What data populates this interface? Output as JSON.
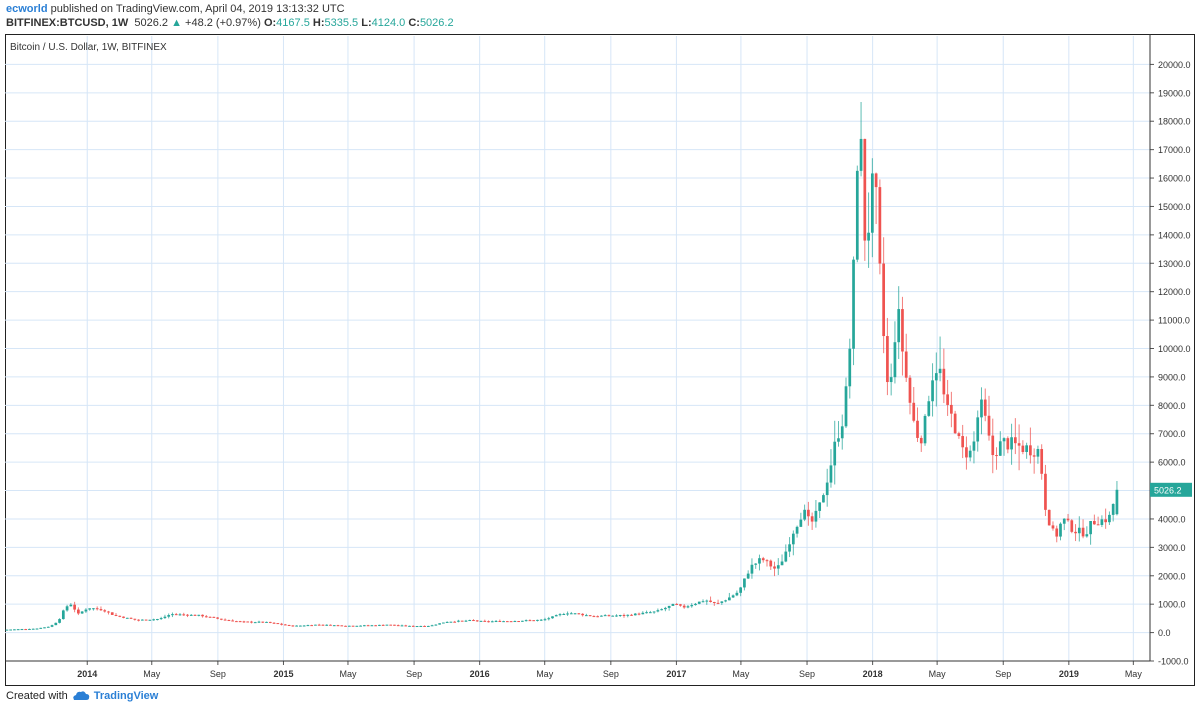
{
  "header": {
    "author": "ecworld",
    "published_text": "published on TradingView.com, April 04, 2019 13:13:32 UTC",
    "symbol": "BITFINEX:BTCUSD, 1W",
    "last": "5026.2",
    "change": "+48.2 (+0.97%)",
    "o_label": "O:",
    "o_value": "4167.5",
    "h_label": "H:",
    "h_value": "5335.5",
    "l_label": "L:",
    "l_value": "4124.0",
    "c_label": "C:",
    "c_value": "5026.2"
  },
  "footer": {
    "created_with": "Created with",
    "brand": "TradingView"
  },
  "colors": {
    "up": "#26a69a",
    "down": "#ef5350",
    "grid": "#d6e6f7",
    "price_tag": "#26a69a"
  },
  "chart_data": {
    "type": "candlestick",
    "title": "Bitcoin / U.S. Dollar, 1W, BITFINEX",
    "last_price_label": "5026.2",
    "ylim": [
      -1000,
      21000
    ],
    "y_ticks": [
      -1000,
      0,
      1000,
      2000,
      3000,
      4000,
      5000,
      6000,
      7000,
      8000,
      9000,
      10000,
      11000,
      12000,
      13000,
      14000,
      15000,
      16000,
      17000,
      18000,
      19000,
      20000
    ],
    "y_tick_labels": [
      "-1000.0",
      "0.0",
      "1000.0",
      "2000.0",
      "3000.0",
      "4000.0",
      "5000.0",
      "6000.0",
      "7000.0",
      "8000.0",
      "9000.0",
      "10000.0",
      "11000.0",
      "12000.0",
      "13000.0",
      "14000.0",
      "15000.0",
      "16000.0",
      "17000.0",
      "18000.0",
      "19000.0",
      "20000.0"
    ],
    "x_range": [
      "2013-08-01",
      "2019-06-01"
    ],
    "x_ticks": [
      {
        "date": "2014-01-01",
        "label": "2014",
        "bold": true
      },
      {
        "date": "2014-05-01",
        "label": "May",
        "bold": false
      },
      {
        "date": "2014-09-01",
        "label": "Sep",
        "bold": false
      },
      {
        "date": "2015-01-01",
        "label": "2015",
        "bold": true
      },
      {
        "date": "2015-05-01",
        "label": "May",
        "bold": false
      },
      {
        "date": "2015-09-01",
        "label": "Sep",
        "bold": false
      },
      {
        "date": "2016-01-01",
        "label": "2016",
        "bold": true
      },
      {
        "date": "2016-05-01",
        "label": "May",
        "bold": false
      },
      {
        "date": "2016-09-01",
        "label": "Sep",
        "bold": false
      },
      {
        "date": "2017-01-01",
        "label": "2017",
        "bold": true
      },
      {
        "date": "2017-05-01",
        "label": "May",
        "bold": false
      },
      {
        "date": "2017-09-01",
        "label": "Sep",
        "bold": false
      },
      {
        "date": "2018-01-01",
        "label": "2018",
        "bold": true
      },
      {
        "date": "2018-05-01",
        "label": "May",
        "bold": false
      },
      {
        "date": "2018-09-01",
        "label": "Sep",
        "bold": false
      },
      {
        "date": "2019-01-01",
        "label": "2019",
        "bold": true
      },
      {
        "date": "2019-05-01",
        "label": "May",
        "bold": false
      }
    ],
    "price_anchors": [
      [
        "2013-08-01",
        100
      ],
      [
        "2013-10-01",
        140
      ],
      [
        "2013-10-28",
        220
      ],
      [
        "2013-11-12",
        420
      ],
      [
        "2013-11-25",
        900
      ],
      [
        "2013-12-05",
        1000
      ],
      [
        "2013-12-19",
        650
      ],
      [
        "2014-01-06",
        880
      ],
      [
        "2014-02-03",
        800
      ],
      [
        "2014-02-24",
        600
      ],
      [
        "2014-04-07",
        440
      ],
      [
        "2014-05-19",
        480
      ],
      [
        "2014-06-09",
        650
      ],
      [
        "2014-08-04",
        600
      ],
      [
        "2014-09-15",
        450
      ],
      [
        "2014-10-20",
        380
      ],
      [
        "2014-12-01",
        370
      ],
      [
        "2015-01-05",
        280
      ],
      [
        "2015-01-19",
        230
      ],
      [
        "2015-03-09",
        280
      ],
      [
        "2015-05-04",
        240
      ],
      [
        "2015-06-29",
        260
      ],
      [
        "2015-07-13",
        285
      ],
      [
        "2015-08-24",
        230
      ],
      [
        "2015-10-05",
        240
      ],
      [
        "2015-11-02",
        380
      ],
      [
        "2015-12-21",
        430
      ],
      [
        "2016-01-11",
        390
      ],
      [
        "2016-03-07",
        410
      ],
      [
        "2016-05-02",
        450
      ],
      [
        "2016-06-13",
        700
      ],
      [
        "2016-07-04",
        660
      ],
      [
        "2016-08-01",
        580
      ],
      [
        "2016-10-03",
        610
      ],
      [
        "2016-11-28",
        740
      ],
      [
        "2016-12-19",
        900
      ],
      [
        "2017-01-02",
        1000
      ],
      [
        "2017-01-16",
        880
      ],
      [
        "2017-02-27",
        1150
      ],
      [
        "2017-03-20",
        1000
      ],
      [
        "2017-04-10",
        1200
      ],
      [
        "2017-05-01",
        1450
      ],
      [
        "2017-05-22",
        2300
      ],
      [
        "2017-06-12",
        2600
      ],
      [
        "2017-07-10",
        2200
      ],
      [
        "2017-07-24",
        2700
      ],
      [
        "2017-08-07",
        3450
      ],
      [
        "2017-08-28",
        4300
      ],
      [
        "2017-09-11",
        3800
      ],
      [
        "2017-09-25",
        4250
      ],
      [
        "2017-10-16",
        5700
      ],
      [
        "2017-10-30",
        6900
      ],
      [
        "2017-11-13",
        7700
      ],
      [
        "2017-11-27",
        11000
      ],
      [
        "2017-12-04",
        15000
      ],
      [
        "2017-12-11",
        19000
      ],
      [
        "2017-12-18",
        14200
      ],
      [
        "2017-12-25",
        13800
      ],
      [
        "2018-01-08",
        16300
      ],
      [
        "2018-01-15",
        13500
      ],
      [
        "2018-01-29",
        9200
      ],
      [
        "2018-02-05",
        8100
      ],
      [
        "2018-02-19",
        11500
      ],
      [
        "2018-02-26",
        10400
      ],
      [
        "2018-03-12",
        8400
      ],
      [
        "2018-03-26",
        7000
      ],
      [
        "2018-04-09",
        6900
      ],
      [
        "2018-04-23",
        9000
      ],
      [
        "2018-05-07",
        9500
      ],
      [
        "2018-05-21",
        7800
      ],
      [
        "2018-06-04",
        7500
      ],
      [
        "2018-06-18",
        6400
      ],
      [
        "2018-07-09",
        6300
      ],
      [
        "2018-07-23",
        8100
      ],
      [
        "2018-08-06",
        7200
      ],
      [
        "2018-08-13",
        6200
      ],
      [
        "2018-09-03",
        6700
      ],
      [
        "2018-10-15",
        6500
      ],
      [
        "2018-11-12",
        6400
      ],
      [
        "2018-11-19",
        4700
      ],
      [
        "2018-11-26",
        4100
      ],
      [
        "2018-12-10",
        3300
      ],
      [
        "2018-12-24",
        4000
      ],
      [
        "2019-01-14",
        3600
      ],
      [
        "2019-02-04",
        3500
      ],
      [
        "2019-02-18",
        3900
      ],
      [
        "2019-03-18",
        4000
      ],
      [
        "2019-03-25",
        4160
      ],
      [
        "2019-04-01",
        5026
      ]
    ],
    "last_candle": {
      "open": 4167.5,
      "high": 5335.5,
      "low": 4124.0,
      "close": 5026.2
    }
  }
}
